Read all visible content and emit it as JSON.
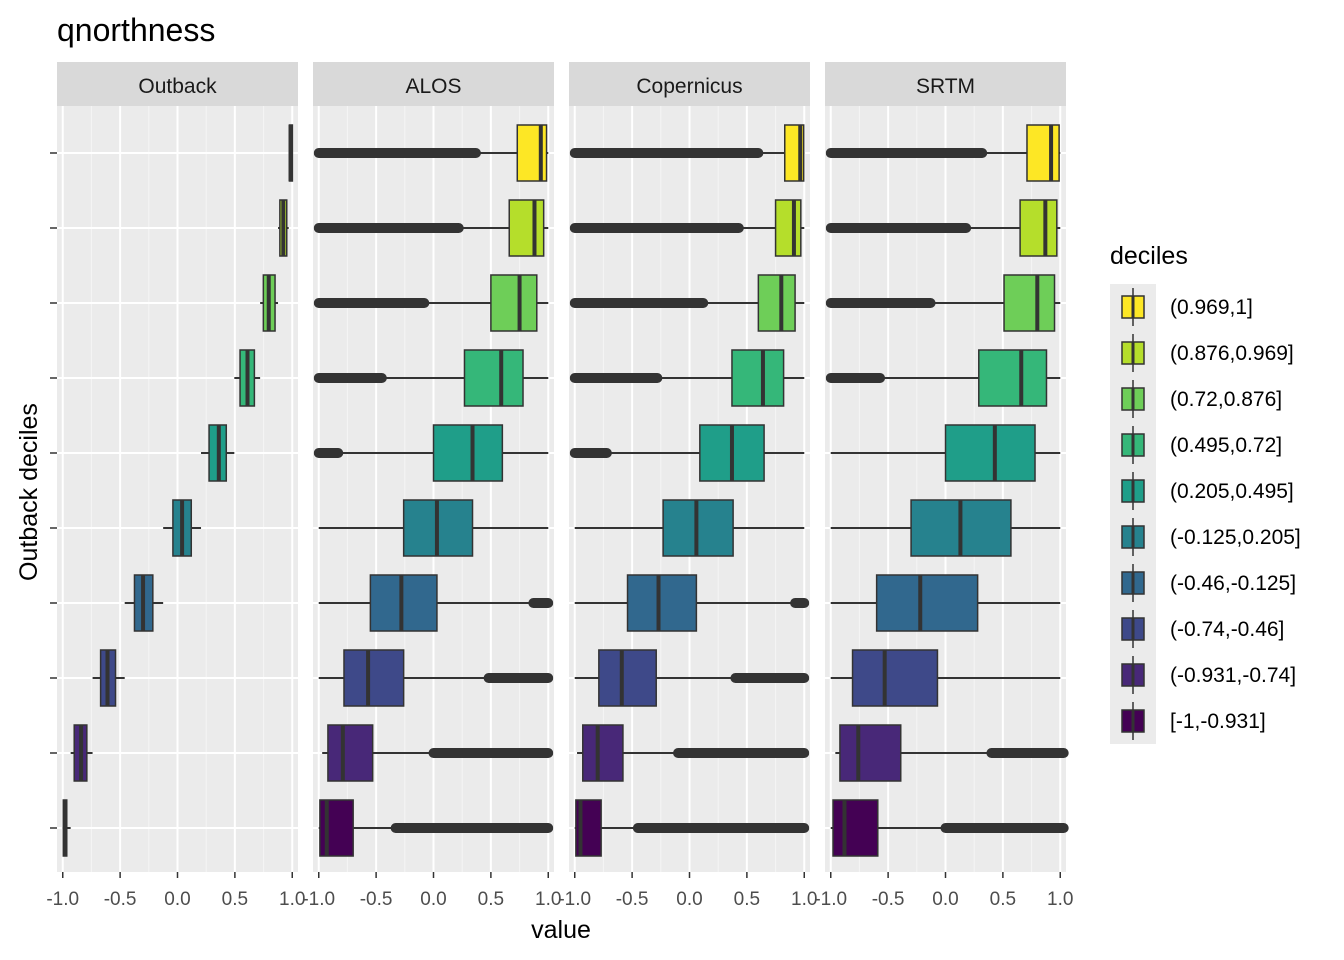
{
  "chart_data": {
    "type": "boxplot",
    "title": "qnorthness",
    "xlabel": "value",
    "ylabel": "Outback deciles",
    "xlim": [
      -1.05,
      1.05
    ],
    "x_ticks": [
      -1.0,
      -0.5,
      0.0,
      0.5,
      1.0
    ],
    "x_tick_labels": [
      "-1.0",
      "-0.5",
      "0.0",
      "0.5",
      "1.0"
    ],
    "facets": [
      "Outback",
      "ALOS",
      "Copernicus",
      "SRTM"
    ],
    "legend": {
      "title": "deciles",
      "entries": [
        {
          "label": "(0.969,1]",
          "color": "#FDE725"
        },
        {
          "label": "(0.876,0.969]",
          "color": "#B5DE2B"
        },
        {
          "label": "(0.72,0.876]",
          "color": "#6ECE58"
        },
        {
          "label": "(0.495,0.72]",
          "color": "#35B779"
        },
        {
          "label": "(0.205,0.495]",
          "color": "#1F9E89"
        },
        {
          "label": "(-0.125,0.205]",
          "color": "#26828E"
        },
        {
          "label": "(-0.46,-0.125]",
          "color": "#31688E"
        },
        {
          "label": "(-0.74,-0.46]",
          "color": "#3E4989"
        },
        {
          "label": "(-0.931,-0.74]",
          "color": "#482878"
        },
        {
          "label": "[-1,-0.931]",
          "color": "#440154"
        }
      ]
    },
    "panels": [
      {
        "facet": "Outback",
        "boxes": [
          {
            "decile": "(0.969,1]",
            "wmin": 0.969,
            "q1": 0.975,
            "median": 0.985,
            "q3": 0.995,
            "wmax": 1.0,
            "out_lo": null,
            "out_hi": null
          },
          {
            "decile": "(0.876,0.969]",
            "wmin": 0.876,
            "q1": 0.892,
            "median": 0.922,
            "q3": 0.952,
            "wmax": 0.969,
            "out_lo": null,
            "out_hi": null
          },
          {
            "decile": "(0.72,0.876]",
            "wmin": 0.72,
            "q1": 0.748,
            "median": 0.795,
            "q3": 0.85,
            "wmax": 0.876,
            "out_lo": null,
            "out_hi": null
          },
          {
            "decile": "(0.495,0.72]",
            "wmin": 0.495,
            "q1": 0.545,
            "median": 0.61,
            "q3": 0.67,
            "wmax": 0.72,
            "out_lo": null,
            "out_hi": null
          },
          {
            "decile": "(0.205,0.495]",
            "wmin": 0.205,
            "q1": 0.275,
            "median": 0.36,
            "q3": 0.425,
            "wmax": 0.495,
            "out_lo": null,
            "out_hi": null
          },
          {
            "decile": "(-0.125,0.205]",
            "wmin": -0.125,
            "q1": -0.04,
            "median": 0.04,
            "q3": 0.12,
            "wmax": 0.205,
            "out_lo": null,
            "out_hi": null
          },
          {
            "decile": "(-0.46,-0.125]",
            "wmin": -0.46,
            "q1": -0.375,
            "median": -0.3,
            "q3": -0.215,
            "wmax": -0.125,
            "out_lo": null,
            "out_hi": null
          },
          {
            "decile": "(-0.74,-0.46]",
            "wmin": -0.74,
            "q1": -0.67,
            "median": -0.61,
            "q3": -0.54,
            "wmax": -0.46,
            "out_lo": null,
            "out_hi": null
          },
          {
            "decile": "(-0.931,-0.74]",
            "wmin": -0.931,
            "q1": -0.9,
            "median": -0.84,
            "q3": -0.79,
            "wmax": -0.74,
            "out_lo": null,
            "out_hi": null
          },
          {
            "decile": "[-1,-0.931]",
            "wmin": -1.0,
            "q1": -0.995,
            "median": -0.98,
            "q3": -0.965,
            "wmax": -0.931,
            "out_lo": null,
            "out_hi": null
          }
        ]
      },
      {
        "facet": "ALOS",
        "boxes": [
          {
            "decile": "(0.969,1]",
            "wmin": 0.37,
            "q1": 0.73,
            "median": 0.935,
            "q3": 0.985,
            "wmax": 1.0,
            "out_lo": [
              -1.0,
              0.37
            ],
            "out_hi": null
          },
          {
            "decile": "(0.876,0.969]",
            "wmin": 0.22,
            "q1": 0.66,
            "median": 0.88,
            "q3": 0.96,
            "wmax": 1.0,
            "out_lo": [
              -1.0,
              0.22
            ],
            "out_hi": null
          },
          {
            "decile": "(0.72,0.876]",
            "wmin": -0.08,
            "q1": 0.5,
            "median": 0.75,
            "q3": 0.9,
            "wmax": 1.0,
            "out_lo": [
              -1.0,
              -0.08
            ],
            "out_hi": null
          },
          {
            "decile": "(0.495,0.72]",
            "wmin": -0.45,
            "q1": 0.27,
            "median": 0.59,
            "q3": 0.78,
            "wmax": 1.0,
            "out_lo": [
              -1.0,
              -0.45
            ],
            "out_hi": null
          },
          {
            "decile": "(0.205,0.495]",
            "wmin": -0.83,
            "q1": 0.0,
            "median": 0.34,
            "q3": 0.6,
            "wmax": 1.0,
            "out_lo": [
              -1.0,
              -0.83
            ],
            "out_hi": null
          },
          {
            "decile": "(-0.125,0.205]",
            "wmin": -1.0,
            "q1": -0.26,
            "median": 0.03,
            "q3": 0.34,
            "wmax": 1.0,
            "out_lo": null,
            "out_hi": null
          },
          {
            "decile": "(-0.46,-0.125]",
            "wmin": -1.0,
            "q1": -0.55,
            "median": -0.28,
            "q3": 0.03,
            "wmax": 0.87,
            "out_lo": null,
            "out_hi": [
              0.87,
              1.0
            ]
          },
          {
            "decile": "(-0.74,-0.46]",
            "wmin": -1.0,
            "q1": -0.78,
            "median": -0.57,
            "q3": -0.26,
            "wmax": 0.48,
            "out_lo": null,
            "out_hi": [
              0.48,
              1.0
            ]
          },
          {
            "decile": "(-0.931,-0.74]",
            "wmin": -0.97,
            "q1": -0.92,
            "median": -0.79,
            "q3": -0.53,
            "wmax": 0.0,
            "out_lo": null,
            "out_hi": [
              0.0,
              1.0
            ]
          },
          {
            "decile": "[-1,-0.931]",
            "wmin": -1.0,
            "q1": -0.99,
            "median": -0.93,
            "q3": -0.7,
            "wmax": -0.33,
            "out_lo": null,
            "out_hi": [
              -0.33,
              1.0
            ]
          }
        ]
      },
      {
        "facet": "Copernicus",
        "boxes": [
          {
            "decile": "(0.969,1]",
            "wmin": 0.6,
            "q1": 0.83,
            "median": 0.965,
            "q3": 0.995,
            "wmax": 1.0,
            "out_lo": [
              -1.0,
              0.6
            ],
            "out_hi": null
          },
          {
            "decile": "(0.876,0.969]",
            "wmin": 0.43,
            "q1": 0.75,
            "median": 0.91,
            "q3": 0.97,
            "wmax": 1.0,
            "out_lo": [
              -1.0,
              0.43
            ],
            "out_hi": null
          },
          {
            "decile": "(0.72,0.876]",
            "wmin": 0.12,
            "q1": 0.6,
            "median": 0.8,
            "q3": 0.92,
            "wmax": 1.0,
            "out_lo": [
              -1.0,
              0.12
            ],
            "out_hi": null
          },
          {
            "decile": "(0.495,0.72]",
            "wmin": -0.28,
            "q1": 0.37,
            "median": 0.64,
            "q3": 0.82,
            "wmax": 1.0,
            "out_lo": [
              -1.0,
              -0.28
            ],
            "out_hi": null
          },
          {
            "decile": "(0.205,0.495]",
            "wmin": -0.72,
            "q1": 0.09,
            "median": 0.37,
            "q3": 0.65,
            "wmax": 1.0,
            "out_lo": [
              -1.0,
              -0.72
            ],
            "out_hi": null
          },
          {
            "decile": "(-0.125,0.205]",
            "wmin": -1.0,
            "q1": -0.23,
            "median": 0.06,
            "q3": 0.38,
            "wmax": 1.0,
            "out_lo": null,
            "out_hi": null
          },
          {
            "decile": "(-0.46,-0.125]",
            "wmin": -1.0,
            "q1": -0.54,
            "median": -0.27,
            "q3": 0.06,
            "wmax": 0.92,
            "out_lo": null,
            "out_hi": [
              0.92,
              1.0
            ]
          },
          {
            "decile": "(-0.74,-0.46]",
            "wmin": -1.0,
            "q1": -0.79,
            "median": -0.59,
            "q3": -0.29,
            "wmax": 0.4,
            "out_lo": null,
            "out_hi": [
              0.4,
              1.0
            ]
          },
          {
            "decile": "(-0.931,-0.74]",
            "wmin": -0.98,
            "q1": -0.93,
            "median": -0.8,
            "q3": -0.58,
            "wmax": -0.1,
            "out_lo": null,
            "out_hi": [
              -0.1,
              1.0
            ]
          },
          {
            "decile": "[-1,-0.931]",
            "wmin": -1.0,
            "q1": -0.99,
            "median": -0.95,
            "q3": -0.77,
            "wmax": -0.45,
            "out_lo": null,
            "out_hi": [
              -0.45,
              1.0
            ]
          }
        ]
      },
      {
        "facet": "SRTM",
        "boxes": [
          {
            "decile": "(0.969,1]",
            "wmin": 0.32,
            "q1": 0.71,
            "median": 0.92,
            "q3": 0.99,
            "wmax": 1.0,
            "out_lo": [
              -1.0,
              0.32
            ],
            "out_hi": null
          },
          {
            "decile": "(0.876,0.969]",
            "wmin": 0.18,
            "q1": 0.65,
            "median": 0.87,
            "q3": 0.97,
            "wmax": 1.0,
            "out_lo": [
              -1.0,
              0.18
            ],
            "out_hi": null
          },
          {
            "decile": "(0.72,0.876]",
            "wmin": -0.13,
            "q1": 0.51,
            "median": 0.8,
            "q3": 0.95,
            "wmax": 1.0,
            "out_lo": [
              -1.0,
              -0.13
            ],
            "out_hi": null
          },
          {
            "decile": "(0.495,0.72]",
            "wmin": -0.57,
            "q1": 0.29,
            "median": 0.66,
            "q3": 0.88,
            "wmax": 1.0,
            "out_lo": [
              -1.0,
              -0.57
            ],
            "out_hi": null
          },
          {
            "decile": "(0.205,0.495]",
            "wmin": -1.0,
            "q1": 0.0,
            "median": 0.43,
            "q3": 0.78,
            "wmax": 1.0,
            "out_lo": null,
            "out_hi": null
          },
          {
            "decile": "(-0.125,0.205]",
            "wmin": -1.0,
            "q1": -0.3,
            "median": 0.13,
            "q3": 0.57,
            "wmax": 1.0,
            "out_lo": null,
            "out_hi": null
          },
          {
            "decile": "(-0.46,-0.125]",
            "wmin": -1.0,
            "q1": -0.6,
            "median": -0.22,
            "q3": 0.28,
            "wmax": 1.0,
            "out_lo": null,
            "out_hi": null
          },
          {
            "decile": "(-0.74,-0.46]",
            "wmin": -1.0,
            "q1": -0.81,
            "median": -0.53,
            "q3": -0.07,
            "wmax": 1.0,
            "out_lo": null,
            "out_hi": null
          },
          {
            "decile": "(-0.931,-0.74]",
            "wmin": -0.96,
            "q1": -0.92,
            "median": -0.76,
            "q3": -0.39,
            "wmax": 0.4,
            "out_lo": null,
            "out_hi": [
              0.4,
              1.03
            ]
          },
          {
            "decile": "[-1,-0.931]",
            "wmin": -1.0,
            "q1": -0.98,
            "median": -0.88,
            "q3": -0.59,
            "wmax": 0.0,
            "out_lo": null,
            "out_hi": [
              0.0,
              1.03
            ]
          }
        ]
      }
    ]
  }
}
